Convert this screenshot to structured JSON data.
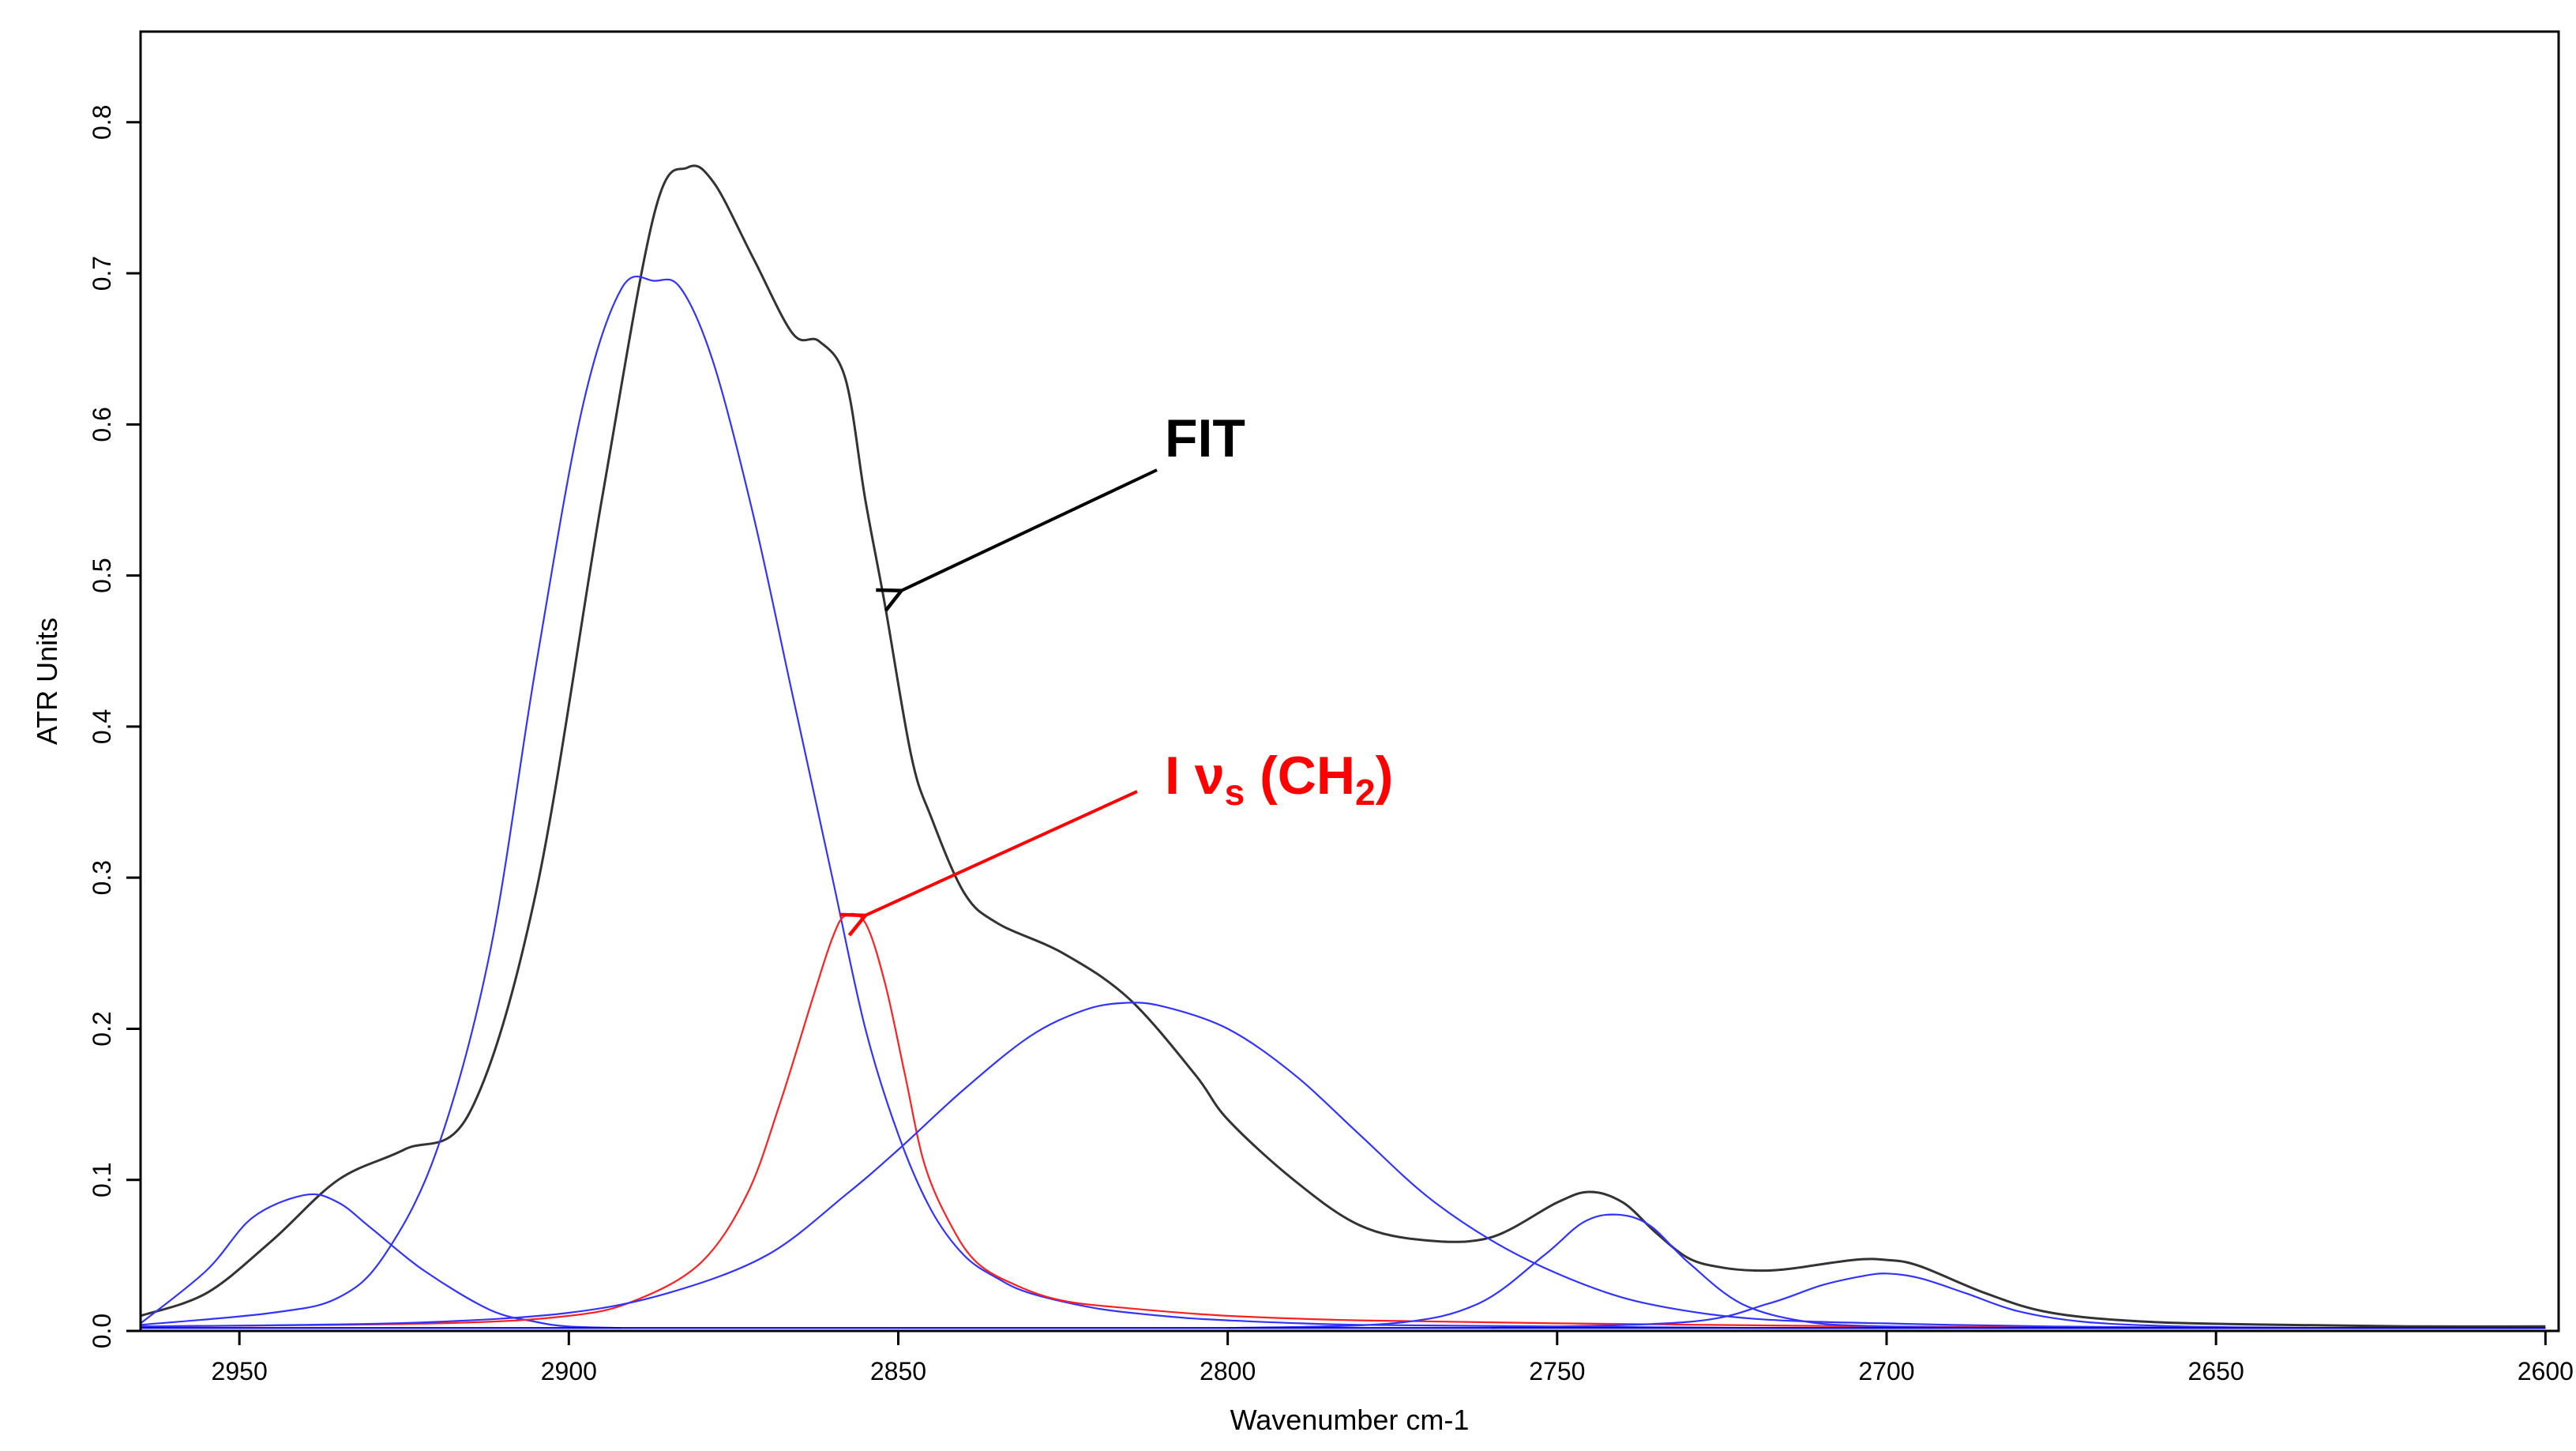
{
  "chart_data": {
    "type": "line",
    "title": "",
    "xlabel": "Wavenumber cm-1",
    "ylabel": "ATR Units",
    "xlim": [
      2965,
      2598
    ],
    "ylim": [
      0,
      0.86
    ],
    "x_reversed": true,
    "grid": false,
    "x_ticks": [
      "2950",
      "2900",
      "2850",
      "2800",
      "2750",
      "2700",
      "2650",
      "2600"
    ],
    "y_ticks": [
      "0.0",
      "0.1",
      "0.2",
      "0.3",
      "0.4",
      "0.5",
      "0.6",
      "0.7",
      "0.8"
    ],
    "annotations": {
      "fit": {
        "text": "FIT",
        "color": "#000000",
        "points_to": [
          2850,
          0.49
        ]
      },
      "ch2": {
        "prefix": "I ",
        "symbol": "ν",
        "symbol_sub": "s",
        "mid": " (CH",
        "sub": "2",
        "suffix": ")",
        "color": "#ff0000",
        "points_to": [
          2855,
          0.275
        ]
      }
    },
    "colors": {
      "fit": "#333333",
      "component": "#3333ff",
      "highlight": "#ff2020"
    },
    "series": [
      {
        "role": "fit",
        "color": "#333333",
        "x": [
          2965,
          2955,
          2945,
          2935,
          2925,
          2915,
          2905,
          2895,
          2887,
          2882,
          2878,
          2872,
          2866,
          2862,
          2858,
          2855,
          2852,
          2848,
          2845,
          2840,
          2835,
          2825,
          2815,
          2805,
          2800,
          2790,
          2780,
          2770,
          2760,
          2750,
          2745,
          2740,
          2735,
          2730,
          2725,
          2720,
          2715,
          2705,
          2700,
          2695,
          2685,
          2675,
          2660,
          2640,
          2620,
          2600
        ],
        "y": [
          0.01,
          0.025,
          0.06,
          0.1,
          0.12,
          0.145,
          0.29,
          0.55,
          0.74,
          0.77,
          0.76,
          0.71,
          0.66,
          0.655,
          0.63,
          0.55,
          0.48,
          0.38,
          0.34,
          0.29,
          0.27,
          0.25,
          0.22,
          0.17,
          0.14,
          0.1,
          0.07,
          0.06,
          0.062,
          0.085,
          0.092,
          0.085,
          0.065,
          0.048,
          0.042,
          0.04,
          0.041,
          0.047,
          0.047,
          0.043,
          0.025,
          0.012,
          0.006,
          0.004,
          0.003,
          0.003
        ]
      },
      {
        "role": "component",
        "color": "#3333ff",
        "x": [
          2965,
          2955,
          2948,
          2940,
          2935,
          2930,
          2922,
          2912,
          2905,
          2900,
          2892
        ],
        "y": [
          0.005,
          0.04,
          0.075,
          0.09,
          0.085,
          0.068,
          0.04,
          0.014,
          0.006,
          0.003,
          0.002
        ]
      },
      {
        "role": "component",
        "color": "#3333ff",
        "x": [
          2965,
          2945,
          2935,
          2928,
          2920,
          2912,
          2905,
          2898,
          2892,
          2887,
          2883,
          2878,
          2872,
          2866,
          2860,
          2855,
          2850,
          2845,
          2840,
          2835,
          2830,
          2820,
          2810,
          2800,
          2780,
          2750,
          2720,
          2690,
          2650,
          2600
        ],
        "y": [
          0.004,
          0.012,
          0.022,
          0.05,
          0.12,
          0.25,
          0.44,
          0.61,
          0.69,
          0.695,
          0.69,
          0.64,
          0.54,
          0.42,
          0.3,
          0.2,
          0.13,
          0.08,
          0.05,
          0.035,
          0.025,
          0.015,
          0.01,
          0.007,
          0.004,
          0.003,
          0.002,
          0.002,
          0.002,
          0.002
        ]
      },
      {
        "role": "highlight",
        "color": "#ff2020",
        "x": [
          2965,
          2920,
          2900,
          2890,
          2880,
          2873,
          2868,
          2863,
          2860,
          2858,
          2855,
          2852,
          2849,
          2846,
          2842,
          2838,
          2832,
          2825,
          2815,
          2800,
          2780,
          2750,
          2700,
          2650,
          2600
        ],
        "y": [
          0.003,
          0.005,
          0.01,
          0.02,
          0.045,
          0.09,
          0.15,
          0.22,
          0.26,
          0.275,
          0.27,
          0.23,
          0.17,
          0.11,
          0.07,
          0.045,
          0.03,
          0.02,
          0.015,
          0.01,
          0.007,
          0.005,
          0.003,
          0.002,
          0.002
        ]
      },
      {
        "role": "component",
        "color": "#3333ff",
        "x": [
          2965,
          2940,
          2920,
          2900,
          2885,
          2870,
          2858,
          2850,
          2840,
          2830,
          2822,
          2816,
          2810,
          2800,
          2790,
          2780,
          2770,
          2760,
          2750,
          2740,
          2730,
          2720,
          2710,
          2700,
          2690,
          2675,
          2650,
          2600
        ],
        "y": [
          0.003,
          0.004,
          0.006,
          0.012,
          0.025,
          0.05,
          0.09,
          0.12,
          0.16,
          0.195,
          0.212,
          0.217,
          0.215,
          0.2,
          0.17,
          0.13,
          0.09,
          0.06,
          0.038,
          0.022,
          0.013,
          0.008,
          0.006,
          0.005,
          0.004,
          0.003,
          0.002,
          0.002
        ]
      },
      {
        "role": "component",
        "color": "#3333ff",
        "x": [
          2800,
          2775,
          2762,
          2752,
          2746,
          2741,
          2736,
          2730,
          2722,
          2712,
          2700,
          2680,
          2650
        ],
        "y": [
          0.002,
          0.005,
          0.018,
          0.05,
          0.072,
          0.077,
          0.07,
          0.045,
          0.018,
          0.006,
          0.003,
          0.002,
          0.002
        ]
      },
      {
        "role": "component",
        "color": "#3333ff",
        "x": [
          2760,
          2730,
          2718,
          2710,
          2704,
          2700,
          2695,
          2688,
          2680,
          2670,
          2655,
          2630,
          2600
        ],
        "y": [
          0.002,
          0.006,
          0.018,
          0.03,
          0.036,
          0.038,
          0.035,
          0.025,
          0.013,
          0.006,
          0.003,
          0.002,
          0.002
        ]
      },
      {
        "role": "component",
        "color": "#0000cc",
        "x": [
          2965,
          2900,
          2800,
          2700,
          2600
        ],
        "y": [
          0.002,
          0.002,
          0.002,
          0.002,
          0.002
        ]
      }
    ]
  }
}
